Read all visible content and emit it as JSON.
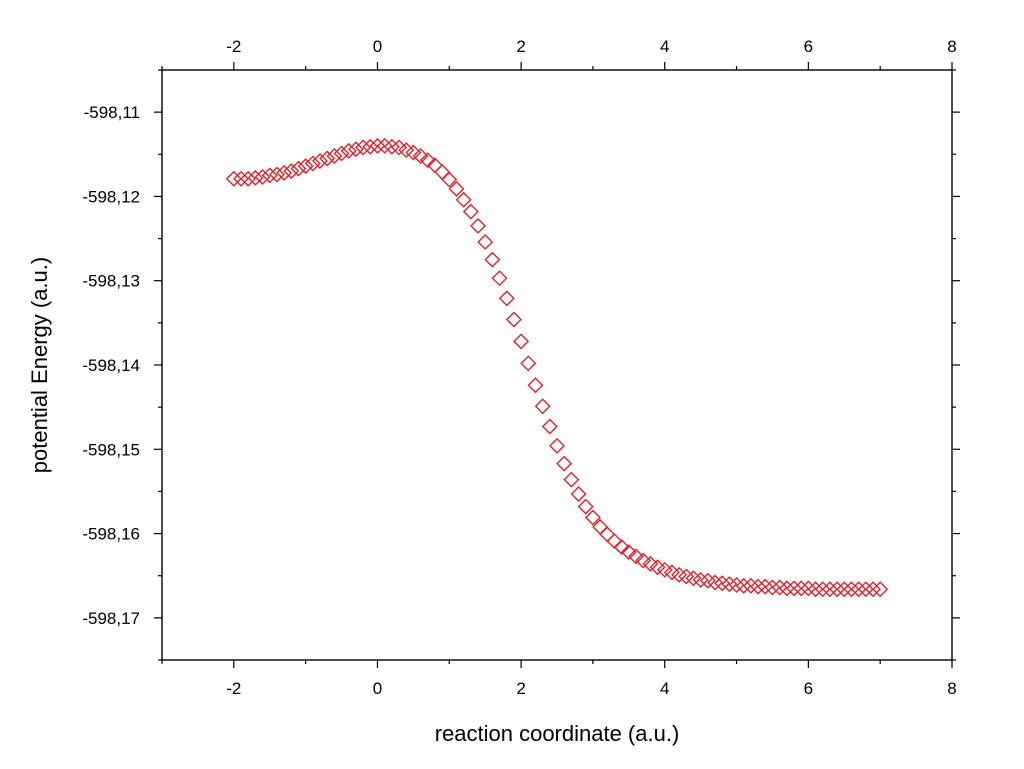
{
  "chart_data": {
    "type": "scatter",
    "title": "",
    "xlabel": "reaction coordinate (a.u.)",
    "ylabel": "potential Energy (a.u.)",
    "xlim": [
      -3,
      8
    ],
    "ylim": [
      -598.175,
      -598.105
    ],
    "xticks": [
      -2,
      0,
      2,
      4,
      6,
      8
    ],
    "xtick_labels": [
      "-2",
      "0",
      "2",
      "4",
      "6",
      "8"
    ],
    "yticks": [
      -598.17,
      -598.16,
      -598.15,
      -598.14,
      -598.13,
      -598.12,
      -598.11
    ],
    "ytick_labels": [
      "-598,17",
      "-598,16",
      "-598,15",
      "-598,14",
      "-598,13",
      "-598,12",
      "-598,11"
    ],
    "top_axis_labels": true,
    "marker": "open-diamond",
    "color": "#e8202a",
    "grid": false,
    "legend": false,
    "series": [
      {
        "x": [
          -2.0,
          -1.9,
          -1.8,
          -1.7,
          -1.6,
          -1.5,
          -1.4,
          -1.3,
          -1.2,
          -1.1,
          -1.0,
          -0.9,
          -0.8,
          -0.7,
          -0.6,
          -0.5,
          -0.4,
          -0.3,
          -0.2,
          -0.1,
          0.0,
          0.1,
          0.2,
          0.3,
          0.4,
          0.5,
          0.6,
          0.7,
          0.8,
          0.9,
          1.0,
          1.1,
          1.2,
          1.3,
          1.4,
          1.5,
          1.6,
          1.7,
          1.8,
          1.9,
          2.0,
          2.1,
          2.2,
          2.3,
          2.4,
          2.5,
          2.6,
          2.7,
          2.8,
          2.9,
          3.0,
          3.1,
          3.2,
          3.3,
          3.4,
          3.5,
          3.6,
          3.7,
          3.8,
          3.9,
          4.0,
          4.1,
          4.2,
          4.3,
          4.4,
          4.5,
          4.6,
          4.7,
          4.8,
          4.9,
          5.0,
          5.1,
          5.2,
          5.3,
          5.4,
          5.5,
          5.6,
          5.7,
          5.8,
          5.9,
          6.0,
          6.1,
          6.2,
          6.3,
          6.4,
          6.5,
          6.6,
          6.7,
          6.8,
          6.9,
          7.0
        ],
        "y": [
          -598.1179,
          -598.1179,
          -598.1179,
          -598.1178,
          -598.1177,
          -598.1175,
          -598.1174,
          -598.1172,
          -598.117,
          -598.1167,
          -598.1164,
          -598.1161,
          -598.1158,
          -598.1155,
          -598.1152,
          -598.1149,
          -598.1146,
          -598.1144,
          -598.1142,
          -598.1141,
          -598.114,
          -598.114,
          -598.1141,
          -598.1142,
          -598.1145,
          -598.1148,
          -598.1152,
          -598.1157,
          -598.1163,
          -598.1171,
          -598.118,
          -598.1191,
          -598.1204,
          -598.1218,
          -598.1235,
          -598.1254,
          -598.1275,
          -598.1297,
          -598.1321,
          -598.1346,
          -598.1372,
          -598.1398,
          -598.1424,
          -598.1449,
          -598.1473,
          -598.1496,
          -598.1517,
          -598.1536,
          -598.1553,
          -598.1568,
          -598.1581,
          -598.1592,
          -598.1601,
          -598.1609,
          -598.1616,
          -598.1622,
          -598.1627,
          -598.1632,
          -598.1636,
          -598.164,
          -598.1643,
          -598.1646,
          -598.1649,
          -598.1651,
          -598.1653,
          -598.1655,
          -598.1656,
          -598.1658,
          -598.1659,
          -598.166,
          -598.1661,
          -598.1662,
          -598.1662,
          -598.1663,
          -598.1663,
          -598.1664,
          -598.1664,
          -598.1665,
          -598.1665,
          -598.1665,
          -598.1665,
          -598.1666,
          -598.1666,
          -598.1666,
          -598.1666,
          -598.1666,
          -598.1666,
          -598.1666,
          -598.1666,
          -598.1666,
          -598.1666
        ]
      }
    ]
  }
}
